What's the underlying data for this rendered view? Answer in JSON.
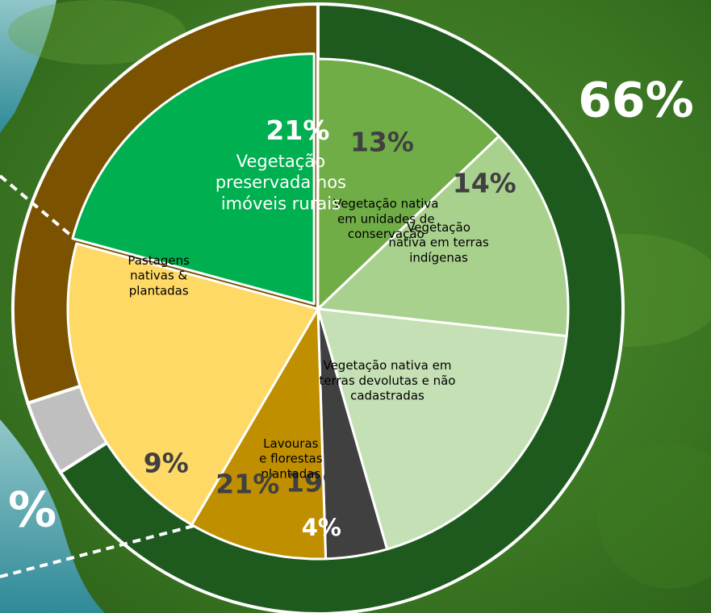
{
  "chart_data": {
    "type": "pie",
    "inner": [
      {
        "label_lines": [
          "Vegetação nativa",
          "em unidades de",
          "conservação"
        ],
        "value": 13,
        "value_label": "13%",
        "color": "#70ad47"
      },
      {
        "label_lines": [
          "Vegetação",
          "nativa em terras",
          "indígenas"
        ],
        "value": 14,
        "value_label": "14%",
        "color": "#a9d18e"
      },
      {
        "label_lines": [
          "Vegetação nativa em",
          "terras devolutas e não",
          "cadastradas"
        ],
        "value": 19,
        "value_label": "19%",
        "color": "#c5e0b4"
      },
      {
        "label_lines": [],
        "value": 4,
        "value_label": "4%",
        "color": "#404040"
      },
      {
        "label_lines": [
          "Lavouras",
          "e florestas",
          "plantadas"
        ],
        "value": 9,
        "value_label": "9%",
        "color": "#bf8f00"
      },
      {
        "label_lines": [
          "Pastagens",
          "nativas &",
          "plantadas"
        ],
        "value": 21,
        "value_label": "21%",
        "color": "#ffd966"
      },
      {
        "label_lines": [
          "Vegetação",
          "preservada nos",
          "imóveis rurais"
        ],
        "value": 21,
        "value_label": "21%",
        "color": "#00b050",
        "exploded": true
      }
    ],
    "outer": [
      {
        "value": 66,
        "value_label": "66%",
        "color": "#1e5a1e"
      },
      {
        "value": 4,
        "color": "#bfbfbf"
      },
      {
        "value": 30,
        "value_label": "%",
        "color": "#7a5200"
      }
    ]
  },
  "colors": {
    "border": "#ffffff",
    "dark_text": "#404040",
    "light_text": "#ffffff",
    "forest": "#2f6b1d",
    "river": "#4aa6b7"
  }
}
